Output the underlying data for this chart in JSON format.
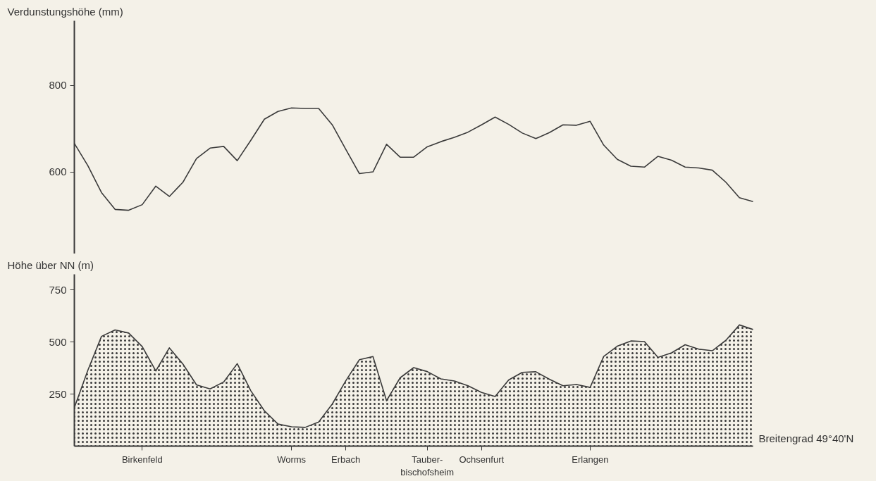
{
  "chart_data": [
    {
      "type": "line",
      "ylabel": "Verdunstungshöhe (mm)",
      "ylim": [
        410,
        950
      ],
      "yticks": [
        600,
        800
      ],
      "tick_labels": "y",
      "categories": [
        null,
        null,
        null,
        null,
        null,
        null,
        null,
        null,
        null,
        null,
        null,
        null,
        null,
        null,
        null,
        null,
        null,
        null,
        null,
        null,
        null,
        null,
        null,
        null,
        null,
        null,
        null,
        null,
        null,
        null,
        null,
        null,
        null,
        null,
        null,
        null,
        null,
        null,
        null,
        null,
        null,
        null,
        null,
        null,
        null,
        null,
        null,
        null,
        null,
        null,
        null
      ],
      "series": [
        {
          "color": "#3a3a3a",
          "values": [
            666,
            614,
            552,
            513,
            511,
            524,
            567,
            543,
            576,
            631,
            655,
            659,
            626,
            673,
            722,
            740,
            748,
            747,
            747,
            709,
            652,
            596,
            600,
            664,
            634,
            634,
            658,
            670,
            680,
            692,
            709,
            727,
            710,
            690,
            677,
            691,
            709,
            708,
            717,
            662,
            629,
            613,
            611,
            636,
            627,
            611,
            609,
            604,
            576,
            540,
            531
          ]
        }
      ]
    },
    {
      "type": "area",
      "ylabel": "Höhe über NN (m)",
      "xlabel": "Breitengrad 49°40'N",
      "ylim": [
        0,
        825
      ],
      "yticks": [
        250,
        500,
        750
      ],
      "categories": [
        null,
        null,
        null,
        null,
        null,
        "Birkenfeld",
        null,
        null,
        null,
        null,
        null,
        null,
        null,
        null,
        null,
        null,
        "Worms",
        null,
        null,
        null,
        "Erbach",
        null,
        null,
        null,
        null,
        null,
        "Tauber-\nbischofsheim",
        null,
        null,
        null,
        "Ochsenfurt",
        null,
        null,
        null,
        null,
        null,
        null,
        null,
        "Erlangen",
        null,
        null,
        null,
        null,
        null,
        null,
        null,
        null,
        null,
        null,
        null,
        null
      ],
      "series": [
        {
          "color": "#3a3a3a",
          "values": [
            185,
            365,
            527,
            558,
            543,
            478,
            361,
            472,
            394,
            294,
            275,
            308,
            396,
            266,
            170,
            106,
            93,
            90,
            116,
            202,
            314,
            415,
            430,
            218,
            328,
            377,
            358,
            323,
            313,
            290,
            258,
            238,
            318,
            354,
            357,
            321,
            290,
            296,
            282,
            431,
            480,
            505,
            502,
            426,
            448,
            487,
            466,
            458,
            508,
            582,
            560
          ]
        }
      ]
    }
  ]
}
